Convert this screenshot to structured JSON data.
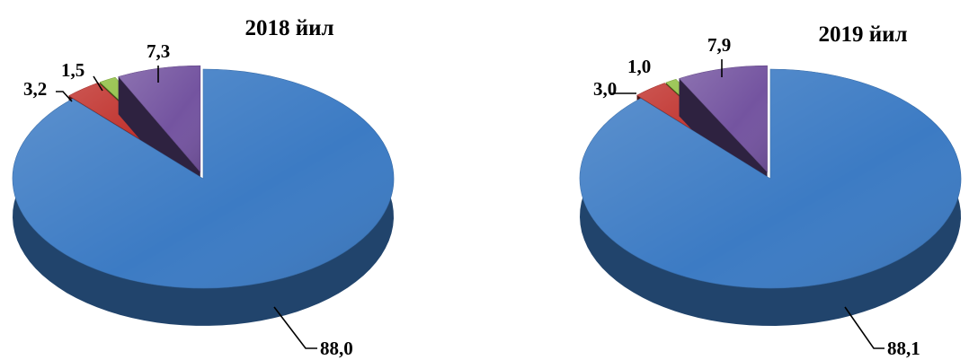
{
  "chart_data": [
    {
      "type": "pie",
      "title": "2018 йил",
      "values": [
        88.0,
        3.2,
        1.5,
        7.3
      ],
      "labels": [
        "88,0",
        "3,2",
        "1,5",
        "7,3"
      ],
      "colors": [
        "#3c7bc4",
        "#c0312c",
        "#8cbd3c",
        "#7454a0"
      ]
    },
    {
      "type": "pie",
      "title": "2019 йил",
      "values": [
        88.1,
        3.0,
        1.0,
        7.9
      ],
      "labels": [
        "88,1",
        "3,0",
        "1,0",
        "7,9"
      ],
      "colors": [
        "#3c7bc4",
        "#c0312c",
        "#8cbd3c",
        "#7454a0"
      ]
    }
  ]
}
